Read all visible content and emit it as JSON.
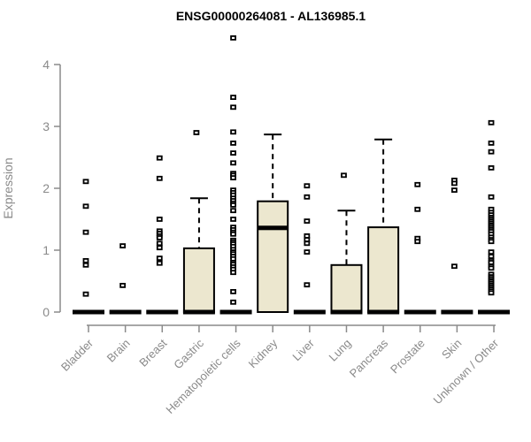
{
  "chart_data": {
    "type": "boxplot",
    "title": "ENSG00000264081 - AL136985.1",
    "ylabel": "Expression",
    "xlabel": "",
    "ylim": [
      0,
      4
    ],
    "yticks": [
      0,
      1,
      2,
      3,
      4
    ],
    "grid": false,
    "legend": "none",
    "colors": {
      "box_fill": "#ece7cf",
      "box_stroke": "#000000",
      "median": "#000000",
      "outlier": "#000000",
      "axis": "#8a8a8a",
      "tick_label": "#8a8a8a",
      "title": "#000000",
      "background": "#ffffff"
    },
    "categories": [
      "Bladder",
      "Brain",
      "Breast",
      "Gastric",
      "Hematopoietic cells",
      "Kidney",
      "Liver",
      "Lung",
      "Pancreas",
      "Prostate",
      "Skin",
      "Unknown / Other"
    ],
    "boxes": [
      {
        "category": "Bladder",
        "whisker_low": 0,
        "q1": 0,
        "median": 0,
        "q3": 0,
        "whisker_high": 0,
        "outliers": [
          2.11,
          1.71,
          1.29,
          0.83,
          0.76,
          0.29
        ]
      },
      {
        "category": "Brain",
        "whisker_low": 0,
        "q1": 0,
        "median": 0,
        "q3": 0,
        "whisker_high": 0,
        "outliers": [
          1.07,
          0.43
        ]
      },
      {
        "category": "Breast",
        "whisker_low": 0,
        "q1": 0,
        "median": 0,
        "q3": 0,
        "whisker_high": 0,
        "outliers": [
          2.49,
          2.16,
          1.5,
          1.31,
          1.27,
          1.23,
          1.2,
          1.11,
          1.04,
          0.87,
          0.79
        ]
      },
      {
        "category": "Gastric",
        "whisker_low": 0,
        "q1": 0,
        "median": 0,
        "q3": 1.03,
        "whisker_high": 1.84,
        "outliers": [
          2.9
        ]
      },
      {
        "category": "Hematopoietic cells",
        "whisker_low": 0,
        "q1": 0,
        "median": 0,
        "q3": 0,
        "whisker_high": 0,
        "outliers": [
          4.43,
          3.47,
          3.31,
          2.91,
          2.73,
          2.57,
          2.41,
          2.24,
          2.21,
          2.17,
          1.97,
          1.93,
          1.89,
          1.84,
          1.8,
          1.76,
          1.73,
          1.64,
          1.5,
          1.37,
          1.33,
          1.29,
          1.26,
          1.16,
          1.13,
          1.1,
          1.06,
          1.01,
          0.97,
          0.94,
          0.9,
          0.86,
          0.8,
          0.77,
          0.73,
          0.69,
          0.64,
          0.33,
          0.16
        ]
      },
      {
        "category": "Kidney",
        "whisker_low": 0,
        "q1": 0,
        "median": 1.36,
        "q3": 1.79,
        "whisker_high": 2.87,
        "outliers": []
      },
      {
        "category": "Liver",
        "whisker_low": 0,
        "q1": 0,
        "median": 0,
        "q3": 0,
        "whisker_high": 0,
        "outliers": [
          2.04,
          1.86,
          1.47,
          1.23,
          1.17,
          1.11,
          0.97,
          0.44
        ]
      },
      {
        "category": "Lung",
        "whisker_low": 0,
        "q1": 0,
        "median": 0,
        "q3": 0.76,
        "whisker_high": 1.64,
        "outliers": [
          2.21
        ]
      },
      {
        "category": "Pancreas",
        "whisker_low": 0,
        "q1": 0,
        "median": 0,
        "q3": 1.37,
        "whisker_high": 2.79,
        "outliers": []
      },
      {
        "category": "Prostate",
        "whisker_low": 0,
        "q1": 0,
        "median": 0,
        "q3": 0,
        "whisker_high": 0,
        "outliers": [
          2.06,
          1.66,
          1.19,
          1.14
        ]
      },
      {
        "category": "Skin",
        "whisker_low": 0,
        "q1": 0,
        "median": 0,
        "q3": 0,
        "whisker_high": 0,
        "outliers": [
          2.13,
          2.08,
          1.97,
          0.74
        ]
      },
      {
        "category": "Unknown / Other",
        "whisker_low": 0,
        "q1": 0,
        "median": 0,
        "q3": 0,
        "whisker_high": 0,
        "outliers": [
          3.06,
          2.73,
          2.59,
          2.33,
          1.86,
          1.66,
          1.61,
          1.57,
          1.53,
          1.5,
          1.47,
          1.44,
          1.41,
          1.39,
          1.36,
          1.33,
          1.3,
          1.26,
          1.21,
          1.17,
          1.14,
          0.97,
          0.9,
          0.83,
          0.8,
          0.74,
          0.71,
          0.61,
          0.57,
          0.54,
          0.51,
          0.49,
          0.46,
          0.43,
          0.4,
          0.37,
          0.34,
          0.31
        ]
      }
    ]
  }
}
